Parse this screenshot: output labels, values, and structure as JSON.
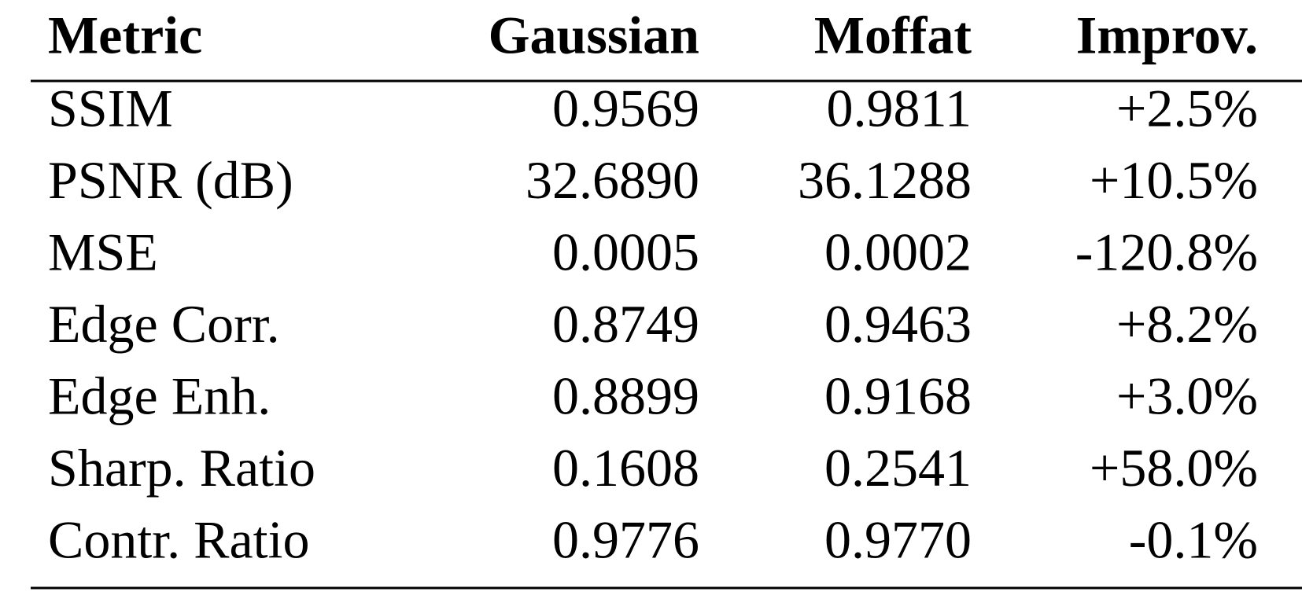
{
  "table": {
    "header": [
      "Metric",
      "Gaussian",
      "Moffat",
      "Improv."
    ],
    "rows": [
      [
        "SSIM",
        "0.9569",
        "0.9811",
        "+2.5%"
      ],
      [
        "PSNR (dB)",
        "32.6890",
        "36.1288",
        "+10.5%"
      ],
      [
        "MSE",
        "0.0005",
        "0.0002",
        "-120.8%"
      ],
      [
        "Edge Corr.",
        "0.8749",
        "0.9463",
        "+8.2%"
      ],
      [
        "Edge Enh.",
        "0.8899",
        "0.9168",
        "+3.0%"
      ],
      [
        "Sharp. Ratio",
        "0.1608",
        "0.2541",
        "+58.0%"
      ],
      [
        "Contr. Ratio",
        "0.9776",
        "0.9770",
        "-0.1%"
      ]
    ]
  }
}
